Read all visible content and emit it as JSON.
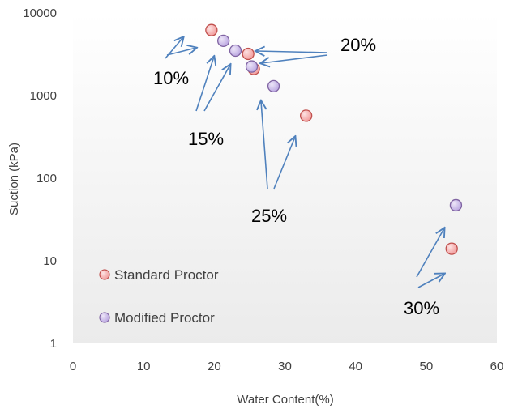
{
  "chart_data": {
    "type": "scatter",
    "xlabel": "Water Content(%)",
    "ylabel": "Suction (kPa)",
    "xlim": [
      0,
      60
    ],
    "ylim": [
      1,
      10000
    ],
    "y_scale": "log",
    "x_ticks": [
      "0",
      "10",
      "20",
      "30",
      "40",
      "50",
      "60"
    ],
    "y_ticks": [
      "1",
      "10",
      "100",
      "1000",
      "10000"
    ],
    "grid": false,
    "legend_position": "bottom-left",
    "series": [
      {
        "name": "Standard Proctor",
        "color": "#f4a6a6",
        "edge_color": "#c0504d",
        "points": [
          {
            "x": 19.6,
            "y": 6200
          },
          {
            "x": 24.8,
            "y": 3200
          },
          {
            "x": 25.6,
            "y": 2100
          },
          {
            "x": 33.0,
            "y": 570
          },
          {
            "x": 53.6,
            "y": 14
          }
        ]
      },
      {
        "name": "Modified Proctor",
        "color": "#c9b8e8",
        "edge_color": "#8064a2",
        "points": [
          {
            "x": 21.3,
            "y": 4600
          },
          {
            "x": 23.0,
            "y": 3500
          },
          {
            "x": 25.3,
            "y": 2250
          },
          {
            "x": 28.4,
            "y": 1300
          },
          {
            "x": 54.2,
            "y": 47
          }
        ]
      }
    ],
    "annotations": [
      {
        "text": "10%"
      },
      {
        "text": "15%"
      },
      {
        "text": "20%"
      },
      {
        "text": "25%"
      },
      {
        "text": "30%"
      }
    ],
    "arrow_color": "#4f81bd"
  }
}
